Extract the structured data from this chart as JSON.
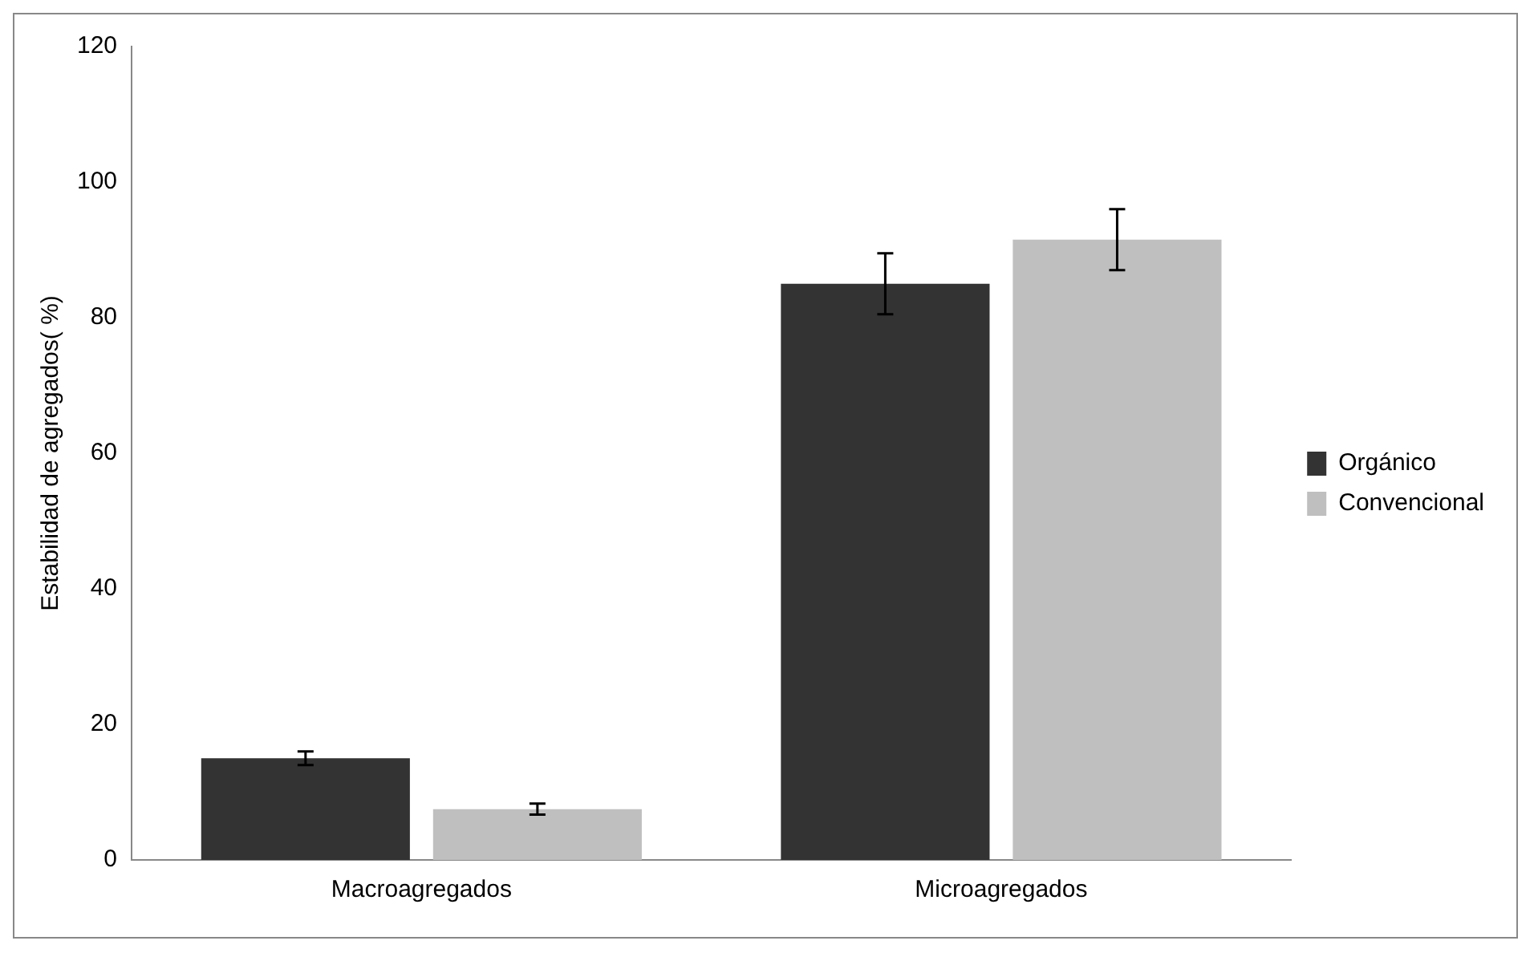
{
  "chart_data": {
    "type": "bar",
    "ylabel": "Estabilidad de agregados( %)",
    "categories": [
      "Macroagregados",
      "Microagregados"
    ],
    "series": [
      {
        "name": "Orgánico",
        "color": "#333333",
        "values": [
          15,
          85
        ],
        "errors": [
          1,
          4.5
        ]
      },
      {
        "name": "Convencional",
        "color": "#bfbfbf",
        "values": [
          7.5,
          91.5
        ],
        "errors": [
          0.8,
          4.5
        ]
      }
    ],
    "ylim": [
      0,
      120
    ],
    "yticks": [
      0,
      20,
      40,
      60,
      80,
      100,
      120
    ],
    "grid": false,
    "legend": "right"
  }
}
